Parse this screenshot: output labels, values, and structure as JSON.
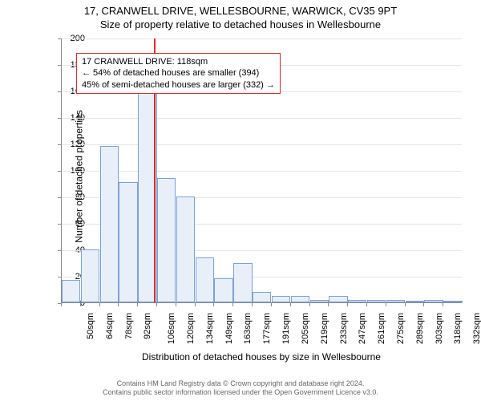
{
  "titles": {
    "line1": "17, CRANWELL DRIVE, WELLESBOURNE, WARWICK, CV35 9PT",
    "line2": "Size of property relative to detached houses in Wellesbourne"
  },
  "chart": {
    "type": "histogram",
    "ylim": [
      0,
      200
    ],
    "ytick_step": 20,
    "y_ticks": [
      0,
      20,
      40,
      60,
      80,
      100,
      120,
      140,
      160,
      180,
      200
    ],
    "y_axis_label": "Number of detached properties",
    "x_axis_label": "Distribution of detached houses by size in Wellesbourne",
    "x_ticks": [
      "50sqm",
      "64sqm",
      "78sqm",
      "92sqm",
      "106sqm",
      "120sqm",
      "134sqm",
      "149sqm",
      "163sqm",
      "177sqm",
      "191sqm",
      "205sqm",
      "219sqm",
      "233sqm",
      "247sqm",
      "261sqm",
      "275sqm",
      "289sqm",
      "303sqm",
      "318sqm",
      "332sqm"
    ],
    "values": [
      17,
      40,
      118,
      91,
      167,
      94,
      80,
      34,
      18,
      30,
      8,
      5,
      5,
      2,
      5,
      2,
      2,
      2,
      1,
      2,
      1
    ],
    "bar_fill": "#e8eff9",
    "bar_stroke": "#7aa3d4",
    "grid_color": "#e6e6e6",
    "background_color": "#ffffff",
    "reference_line": {
      "value_sqm": 118,
      "color": "#d92c2c"
    },
    "annotation": {
      "line1": "17 CRANWELL DRIVE: 118sqm",
      "line2": "← 54% of detached houses are smaller (394)",
      "line3": "45% of semi-detached houses are larger (332) →",
      "border_color": "#d92c2c"
    }
  },
  "footer": {
    "line1": "Contains HM Land Registry data © Crown copyright and database right 2024.",
    "line2": "Contains public sector information licensed under the Open Government Licence v3.0."
  }
}
